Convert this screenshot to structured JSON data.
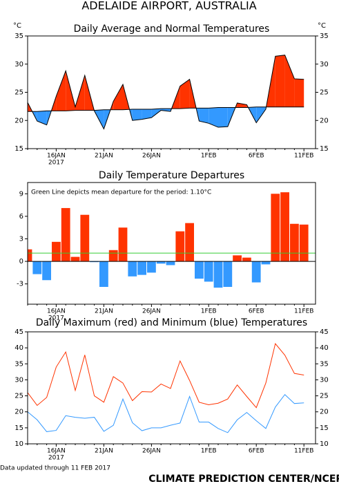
{
  "title": "ADELAIDE AIRPORT, AUSTRALIA",
  "footer_left": "Data updated through 11 FEB 2017",
  "footer_right": "CLIMATE PREDICTION CENTER/NCEP",
  "chart_data": [
    {
      "type": "line",
      "title": "Daily Average and Normal Temperatures",
      "y_unit": "°C",
      "y2_unit": "°C",
      "categories": [
        null,
        null,
        null,
        "16JAN",
        null,
        null,
        null,
        null,
        "21JAN",
        null,
        null,
        null,
        null,
        "26JAN",
        null,
        null,
        null,
        null,
        null,
        "1FEB",
        null,
        null,
        null,
        null,
        "6FEB",
        null,
        null,
        null,
        null,
        "11FEB"
      ],
      "x_sublabel": "2017",
      "series": [
        {
          "color": "#000000",
          "values": [
            23.2,
            19.9,
            19.2,
            24.3,
            28.8,
            22.4,
            28.0,
            21.7,
            18.5,
            23.4,
            26.4,
            20.0,
            20.2,
            20.5,
            21.8,
            21.6,
            26.1,
            27.3,
            19.9,
            19.5,
            18.8,
            18.9,
            23.1,
            22.8,
            19.6,
            22.0,
            31.4,
            31.6,
            27.4,
            27.3
          ]
        },
        {
          "color": "#000000",
          "values": [
            21.6,
            21.6,
            21.7,
            21.7,
            21.7,
            21.8,
            21.8,
            21.8,
            21.9,
            21.9,
            21.9,
            22.0,
            22.0,
            22.0,
            22.1,
            22.1,
            22.1,
            22.2,
            22.2,
            22.2,
            22.3,
            22.3,
            22.3,
            22.3,
            22.4,
            22.4,
            22.4,
            22.4,
            22.4,
            22.4
          ]
        }
      ],
      "fill_above": "#ff3300",
      "fill_below": "#3399ff",
      "ylim": [
        15,
        35
      ],
      "yticks": [
        15,
        20,
        25,
        30,
        35
      ],
      "y2lim": [
        15,
        35
      ],
      "y2ticks": [
        15,
        20,
        25,
        30,
        35
      ]
    },
    {
      "type": "bar",
      "title": "Daily Temperature Departures",
      "annotation": "Green Line depicts mean departure for the period:",
      "mean_line": {
        "value": 1.1,
        "label": "1.10°C",
        "color": "#33cc33"
      },
      "categories": [
        null,
        null,
        null,
        "16JAN",
        null,
        null,
        null,
        null,
        "21JAN",
        null,
        null,
        null,
        null,
        "26JAN",
        null,
        null,
        null,
        null,
        null,
        "1FEB",
        null,
        null,
        null,
        null,
        "6FEB",
        null,
        null,
        null,
        null,
        "11FEB"
      ],
      "x_sublabel": "2017",
      "values": [
        1.6,
        -1.7,
        -2.5,
        2.6,
        7.1,
        0.6,
        6.2,
        -0.1,
        -3.4,
        1.5,
        4.5,
        -2.0,
        -1.8,
        -1.5,
        -0.3,
        -0.5,
        4.0,
        5.1,
        -2.3,
        -2.7,
        -3.5,
        -3.4,
        0.8,
        0.5,
        -2.8,
        -0.4,
        9.0,
        9.2,
        5.0,
        4.9
      ],
      "color_positive": "#ff3300",
      "color_negative": "#3399ff",
      "ylim": [
        -5.7,
        10.5
      ],
      "yticks": [
        -3,
        0,
        3,
        6,
        9
      ]
    },
    {
      "type": "line",
      "title": "Daily Maximum (red) and Minimum (blue) Temperatures",
      "categories": [
        null,
        null,
        null,
        "16JAN",
        null,
        null,
        null,
        null,
        "21JAN",
        null,
        null,
        null,
        null,
        "26JAN",
        null,
        null,
        null,
        null,
        null,
        "1FEB",
        null,
        null,
        null,
        null,
        "6FEB",
        null,
        null,
        null,
        null,
        "11FEB"
      ],
      "x_sublabel": "2017",
      "series": [
        {
          "color": "#ff3300",
          "values": [
            26,
            22,
            24.5,
            34,
            38.7,
            26.7,
            37.8,
            25,
            23,
            31,
            29,
            23.5,
            26.3,
            26.2,
            28.7,
            27.3,
            35.9,
            29.8,
            23,
            22.2,
            22.7,
            24,
            28.4,
            24.8,
            21.3,
            29,
            41.3,
            37.7,
            32,
            31.5
          ]
        },
        {
          "color": "#3399ff",
          "values": [
            20,
            17.5,
            13.8,
            14.2,
            18.8,
            18.3,
            18,
            18.3,
            13.9,
            15.8,
            24,
            16.6,
            14.1,
            15,
            15,
            15.8,
            16.5,
            24.8,
            16.8,
            16.8,
            14.8,
            13.5,
            17.5,
            19.8,
            17.2,
            14.8,
            21.5,
            25.4,
            22.6,
            22.8
          ]
        }
      ],
      "ylim": [
        10,
        45
      ],
      "yticks": [
        10,
        15,
        20,
        25,
        30,
        35,
        40,
        45
      ],
      "y2lim": [
        10,
        45
      ],
      "y2ticks": [
        10,
        15,
        20,
        25,
        30,
        35,
        40,
        45
      ]
    }
  ]
}
